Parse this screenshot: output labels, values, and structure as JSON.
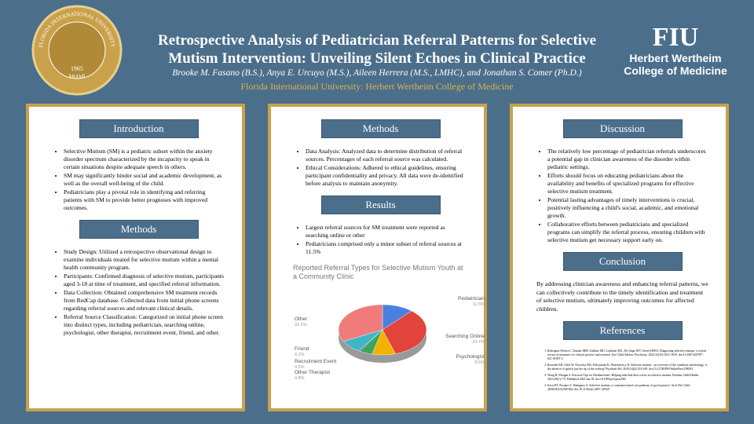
{
  "header": {
    "title_line1": "Retrospective Analysis of Pediatrician Referral Patterns for Selective",
    "title_line2": "Mutism Intervention: Unveiling Silent Echoes in Clinical Practice",
    "authors": "Brooke M. Fasano (B.S.), Anya E. Urcuyo (M.S.), Aileen Herrera (M.S., LMHC), and Jonathan S. Comer (Ph.D.)",
    "affiliation": "Florida International University: Herbert Wertheim College of Medicine",
    "seal": {
      "name": "FLORIDA INTERNATIONAL UNIVERSITY",
      "city": "MIAMI",
      "year": "1965"
    },
    "logo": {
      "mark": "FIU",
      "line1": "Herbert Wertheim",
      "line2": "College of Medicine"
    }
  },
  "panels": [
    {
      "sections": [
        {
          "heading": "Introduction",
          "bullets": [
            "Selective Mutism (SM) is a pediatric subset within the anxiety disorder spectrum characterized by the incapacity to speak in certain situations despite adequate speech in others.",
            "SM may significantly hinder social and academic development, as well as the overall well-being of the child.",
            "Pediatricians play a pivotal role in identifying and referring patients with SM to provide better prognoses with improved outcomes."
          ]
        },
        {
          "heading": "Methods",
          "bullets": [
            "Study Design: Utilized a retrospective observational design to examine individuals treated for selective mutism within a mental health community program.",
            "Participants: Confirmed diagnosis of selective mutism, participants aged 3-18 at time of treatment, and specified referral information.",
            "Data Collection: Obtained comprehensive SM treatment records from RedCap database. Collected data from initial phone screens regarding referral sources and relevant clinical details.",
            "Referral Source Classification: Categorized on initial phone screen into distinct types, including pediatrician, searching online, psychologist, other therapist, recruitment event, friend, and other."
          ]
        }
      ]
    },
    {
      "sections": [
        {
          "heading": "Methods",
          "bullets": [
            "Data Analysis: Analyzed data to determine distribution of referral sources. Percentages of each referral source was calculated.",
            "Ethical Considerations: Adhered to ethical guidelines, ensuring participant confidentiality and privacy. All data were de-identified before analysis to maintain anonymity."
          ]
        },
        {
          "heading": "Results",
          "bullets": [
            "Largest referral sources for SM treatment were reported as searching online or other",
            "Pediatricians comprised only a minor subset of referral sources at 11.5%"
          ]
        }
      ]
    },
    {
      "sections": [
        {
          "heading": "Discussion",
          "bullets": [
            "The relatively low percentage of pediatrician referrals underscores a potential gap in clinician awareness of the disorder within pediatric settings.",
            "Efforts should focus on educating pediatricians about the availability and benefits of specialized programs for effective selective mutism treatment.",
            "Potential lasting advantages of timely interventions is crucial, positively influencing a child's social, academic, and emotional growth.",
            "Collaborative efforts between pediatricians and specialized programs can simplify the referral process, ensuring children with selective mutism get necessary support early on."
          ]
        },
        {
          "heading": "Conclusion",
          "text": "By addressing clinician awareness and enhancing referral patterns, we can collectively contribute to the timely identification and treatment of selective mutism, ultimately improving outcomes for affected children."
        },
        {
          "heading": "References",
          "items": [
            "Rodrigues Pereira C, Ensink JBM, Güldner MG, Lindauer RJL, De Jonge MV, Utens EMWJ. Diagnosing selective mutism: a critical review of measures for clinical practice and research. Eur Child Adolesc Psychiatry. 2023;32(10):1821-1839. doi:10.1007/s00787-021-01907-2",
            "Rozenek EB, Orlof W, Nowicka ZM, Wilczyńska K, Waszkiewicz N. Selective mutism - an overview of the condition and etiology: is the absence of speech just the tip of the iceberg? Psychiatr Pol. 2020;54(2):333-349. doi:10.12740/PP/OnlineFirst/108503",
            "Wong R, Morgan S. Practical Tips for Paediatricians: Helping kids find their voices in selective mutism. Paediatr Child Health. 2023;28(1):7-9. Published 2023 Jan 18. doi:10.1093/pch/pxac083",
            "Kern DY, Fornaro S, Wattigney A. Selective mutism: a consensus based care pathway of good practice. Arch Dis Child. 2008;93(10):838-844. doi:10.1136/adc.2007.129437"
          ]
        }
      ]
    }
  ],
  "chart_data": {
    "type": "pie",
    "title": "Reported Referral Types for Selective Mutism Youth at a Community Clinic",
    "categories": [
      "Pediatrician",
      "Searching Online",
      "Psychologist",
      "Other Therapist",
      "Recruitment Event",
      "Friend",
      "Other"
    ],
    "values": [
      11.5,
      33.7,
      8.6,
      4.8,
      0.5,
      8.2,
      32.6
    ],
    "value_labels": [
      "11.5%",
      "33.7%",
      "8.6%",
      "4.8%",
      "0.5%",
      "8.2%",
      "32.6%"
    ],
    "colors": [
      "#4a7fe0",
      "#e2433a",
      "#f2b200",
      "#3ba55c",
      "#8a5cb8",
      "#3fb6c6",
      "#ef7b7b"
    ]
  }
}
